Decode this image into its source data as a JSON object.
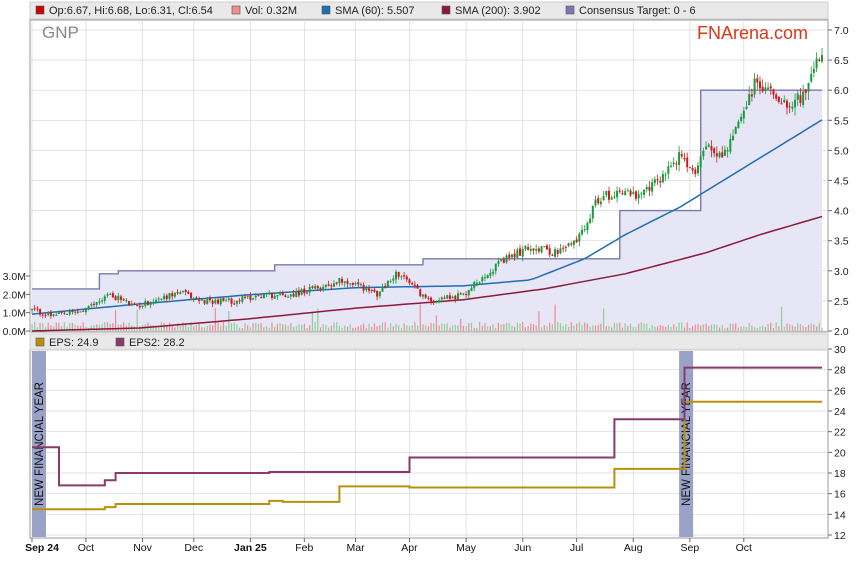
{
  "ticker": "GNP",
  "brand": "FNArena.com",
  "legend_top": [
    {
      "label": "Op:6.67, Hi:6.68, Lo:6.31, Cl:6.54",
      "color": "#cc0000"
    },
    {
      "label": "Vol: 0.32M",
      "color": "#f08c8c"
    },
    {
      "label": "SMA (60): 5.507",
      "color": "#1f6fb4"
    },
    {
      "label": "SMA (200): 3.902",
      "color": "#8b1a3a"
    },
    {
      "label": "Consensus Target: 0 - 6",
      "color": "#7a7aae"
    }
  ],
  "legend_bottom": [
    {
      "label": "EPS: 24.9",
      "color": "#b8900a"
    },
    {
      "label": "EPS2: 28.2",
      "color": "#8a3a6a"
    }
  ],
  "new_financial_year_label": "NEW FINANCIAL YEAR",
  "colors": {
    "up_candle": "#1a9a3a",
    "down_candle": "#cc1a1a",
    "sma60": "#1f6fb4",
    "sma200": "#8b1a3a",
    "target_line": "#7a7aae",
    "target_fill": "#e6e6f7",
    "volume": "#f08c8c",
    "eps": "#b8900a",
    "eps2": "#8a3a6a",
    "fy_band": "#9aa2c8",
    "grid": "#d8d8d8"
  },
  "chart_data": [
    {
      "type": "candlestick",
      "ylim": [
        2.0,
        7.0
      ],
      "y_ticks": [
        "2.0",
        "2.5",
        "3.0",
        "3.5",
        "4.0",
        "4.5",
        "5.0",
        "5.5",
        "6.0",
        "6.5",
        "7.0"
      ],
      "volume_ticks": [
        "0.0M",
        "1.0M",
        "2.0M",
        "3.0M"
      ],
      "volume_ylim": [
        0,
        3.0
      ],
      "price_anchors": [
        {
          "t": 0,
          "v": 2.35
        },
        {
          "t": 8,
          "v": 2.25
        },
        {
          "t": 15,
          "v": 2.3
        },
        {
          "t": 20,
          "v": 2.35
        },
        {
          "t": 28,
          "v": 2.6
        },
        {
          "t": 32,
          "v": 2.55
        },
        {
          "t": 38,
          "v": 2.4
        },
        {
          "t": 48,
          "v": 2.55
        },
        {
          "t": 55,
          "v": 2.65
        },
        {
          "t": 62,
          "v": 2.5
        },
        {
          "t": 75,
          "v": 2.5
        },
        {
          "t": 85,
          "v": 2.6
        },
        {
          "t": 95,
          "v": 2.6
        },
        {
          "t": 105,
          "v": 2.7
        },
        {
          "t": 115,
          "v": 2.85
        },
        {
          "t": 122,
          "v": 2.75
        },
        {
          "t": 128,
          "v": 2.6
        },
        {
          "t": 135,
          "v": 2.95
        },
        {
          "t": 140,
          "v": 2.8
        },
        {
          "t": 147,
          "v": 2.5
        },
        {
          "t": 152,
          "v": 2.55
        },
        {
          "t": 160,
          "v": 2.6
        },
        {
          "t": 168,
          "v": 2.95
        },
        {
          "t": 178,
          "v": 3.25
        },
        {
          "t": 185,
          "v": 3.4
        },
        {
          "t": 195,
          "v": 3.3
        },
        {
          "t": 202,
          "v": 3.5
        },
        {
          "t": 210,
          "v": 4.2
        },
        {
          "t": 220,
          "v": 4.35
        },
        {
          "t": 225,
          "v": 4.2
        },
        {
          "t": 232,
          "v": 4.5
        },
        {
          "t": 240,
          "v": 4.9
        },
        {
          "t": 245,
          "v": 4.6
        },
        {
          "t": 250,
          "v": 5.1
        },
        {
          "t": 256,
          "v": 4.9
        },
        {
          "t": 262,
          "v": 5.4
        },
        {
          "t": 268,
          "v": 6.1
        },
        {
          "t": 274,
          "v": 6.0
        },
        {
          "t": 280,
          "v": 5.8
        },
        {
          "t": 286,
          "v": 5.9
        },
        {
          "t": 291,
          "v": 6.4
        },
        {
          "t": 293,
          "v": 6.54
        }
      ],
      "sma60_anchors": [
        {
          "t": 0,
          "v": 2.28
        },
        {
          "t": 40,
          "v": 2.45
        },
        {
          "t": 80,
          "v": 2.6
        },
        {
          "t": 120,
          "v": 2.72
        },
        {
          "t": 160,
          "v": 2.75
        },
        {
          "t": 185,
          "v": 2.85
        },
        {
          "t": 205,
          "v": 3.2
        },
        {
          "t": 220,
          "v": 3.6
        },
        {
          "t": 240,
          "v": 4.05
        },
        {
          "t": 260,
          "v": 4.6
        },
        {
          "t": 280,
          "v": 5.15
        },
        {
          "t": 293,
          "v": 5.507
        }
      ],
      "sma200_anchors": [
        {
          "t": 0,
          "v": 2.0
        },
        {
          "t": 40,
          "v": 2.05
        },
        {
          "t": 80,
          "v": 2.2
        },
        {
          "t": 120,
          "v": 2.38
        },
        {
          "t": 160,
          "v": 2.52
        },
        {
          "t": 190,
          "v": 2.7
        },
        {
          "t": 220,
          "v": 2.95
        },
        {
          "t": 250,
          "v": 3.3
        },
        {
          "t": 270,
          "v": 3.6
        },
        {
          "t": 293,
          "v": 3.902
        }
      ],
      "consensus_target_steps": [
        {
          "t": 0,
          "v": 2.7
        },
        {
          "t": 25,
          "v": 2.95
        },
        {
          "t": 32,
          "v": 3.0
        },
        {
          "t": 90,
          "v": 3.1
        },
        {
          "t": 145,
          "v": 3.2
        },
        {
          "t": 218,
          "v": 4.0
        },
        {
          "t": 248,
          "v": 6.0
        },
        {
          "t": 293,
          "v": 6.0
        }
      ]
    },
    {
      "type": "line",
      "ylim": [
        12,
        30
      ],
      "y_ticks": [
        "12",
        "14",
        "16",
        "18",
        "20",
        "22",
        "24",
        "26",
        "28",
        "30"
      ],
      "x_ticks": [
        {
          "label": "Sep 24",
          "t": 0,
          "bold": true
        },
        {
          "label": "Oct",
          "t": 20,
          "bold": false
        },
        {
          "label": "Nov",
          "t": 41,
          "bold": false
        },
        {
          "label": "Dec",
          "t": 60,
          "bold": false
        },
        {
          "label": "Jan 25",
          "t": 81,
          "bold": true
        },
        {
          "label": "Feb",
          "t": 101,
          "bold": false
        },
        {
          "label": "Mar",
          "t": 120,
          "bold": false
        },
        {
          "label": "Apr",
          "t": 140,
          "bold": false
        },
        {
          "label": "May",
          "t": 161,
          "bold": false
        },
        {
          "label": "Jun",
          "t": 182,
          "bold": false
        },
        {
          "label": "Jul",
          "t": 202,
          "bold": false
        },
        {
          "label": "Aug",
          "t": 223,
          "bold": false
        },
        {
          "label": "Sep",
          "t": 244,
          "bold": false
        },
        {
          "label": "Oct",
          "t": 264,
          "bold": false
        }
      ],
      "eps_steps": [
        {
          "t": 0,
          "v": 14.5
        },
        {
          "t": 27,
          "v": 14.7
        },
        {
          "t": 31,
          "v": 15.0
        },
        {
          "t": 88,
          "v": 15.3
        },
        {
          "t": 93,
          "v": 15.2
        },
        {
          "t": 114,
          "v": 16.7
        },
        {
          "t": 140,
          "v": 16.6
        },
        {
          "t": 216,
          "v": 18.4
        },
        {
          "t": 242,
          "v": 24.9
        },
        {
          "t": 293,
          "v": 24.9
        }
      ],
      "eps2_steps": [
        {
          "t": 0,
          "v": 20.5
        },
        {
          "t": 10,
          "v": 16.8
        },
        {
          "t": 27,
          "v": 17.3
        },
        {
          "t": 31,
          "v": 18.0
        },
        {
          "t": 88,
          "v": 18.1
        },
        {
          "t": 140,
          "v": 19.5
        },
        {
          "t": 216,
          "v": 23.2
        },
        {
          "t": 242,
          "v": 28.2
        },
        {
          "t": 293,
          "v": 28.2
        }
      ],
      "new_financial_year_markers": [
        0,
        240
      ]
    }
  ]
}
